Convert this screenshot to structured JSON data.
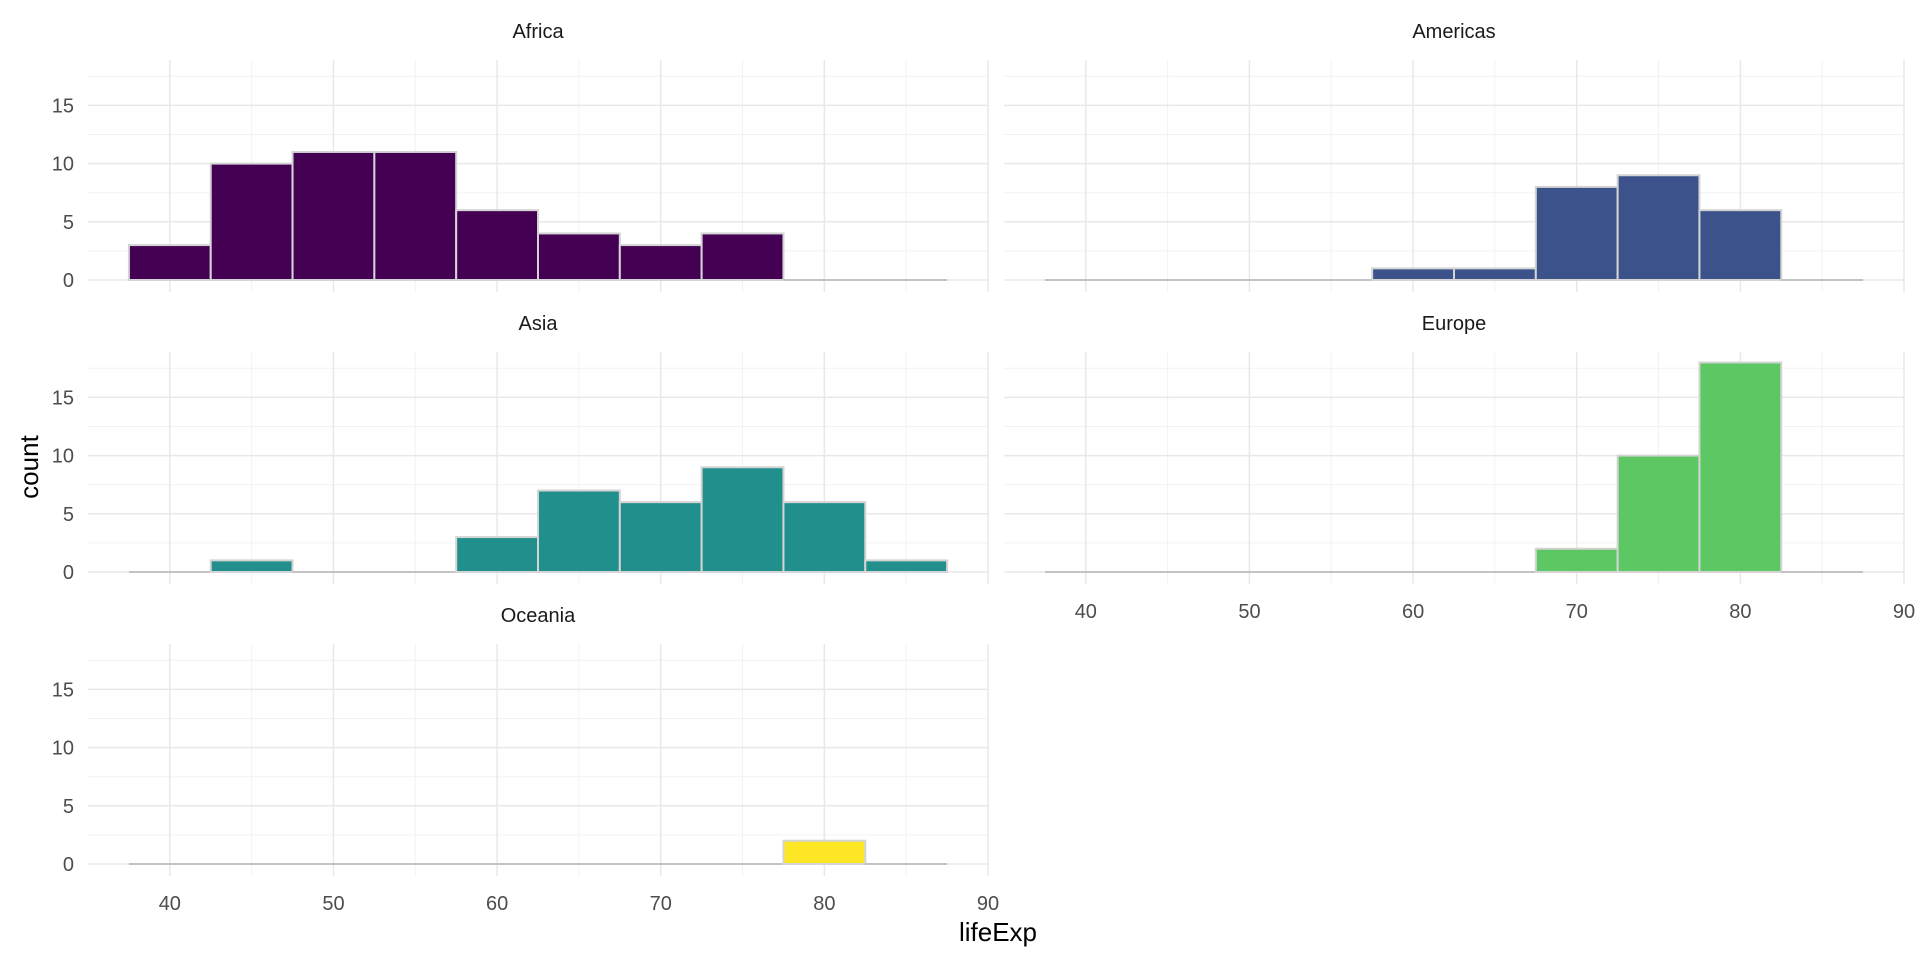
{
  "chart_data": {
    "type": "bar",
    "xlabel": "lifeExp",
    "ylabel": "count",
    "x_ticks": [
      40,
      50,
      60,
      70,
      80,
      90
    ],
    "y_ticks": [
      0,
      5,
      10,
      15
    ],
    "xlim": [
      35,
      90
    ],
    "ylim": [
      0,
      18.9
    ],
    "bin_width": 5,
    "bin_starts": [
      37.5,
      42.5,
      47.5,
      52.5,
      57.5,
      62.5,
      67.5,
      72.5,
      77.5,
      82.5
    ],
    "grid": true,
    "legend": "none",
    "series": [
      {
        "name": "Africa",
        "color": "#440154",
        "values": [
          3,
          10,
          11,
          11,
          6,
          4,
          3,
          4,
          0,
          0
        ]
      },
      {
        "name": "Americas",
        "color": "#3B528B",
        "values": [
          0,
          0,
          0,
          0,
          1,
          1,
          8,
          9,
          6,
          0
        ]
      },
      {
        "name": "Asia",
        "color": "#21908C",
        "values": [
          0,
          1,
          0,
          0,
          3,
          7,
          6,
          9,
          6,
          1
        ]
      },
      {
        "name": "Europe",
        "color": "#5DC863",
        "values": [
          0,
          0,
          0,
          0,
          0,
          0,
          2,
          10,
          18,
          0
        ]
      },
      {
        "name": "Oceania",
        "color": "#FDE725",
        "values": [
          0,
          0,
          0,
          0,
          0,
          0,
          0,
          0,
          2,
          0
        ]
      }
    ]
  }
}
